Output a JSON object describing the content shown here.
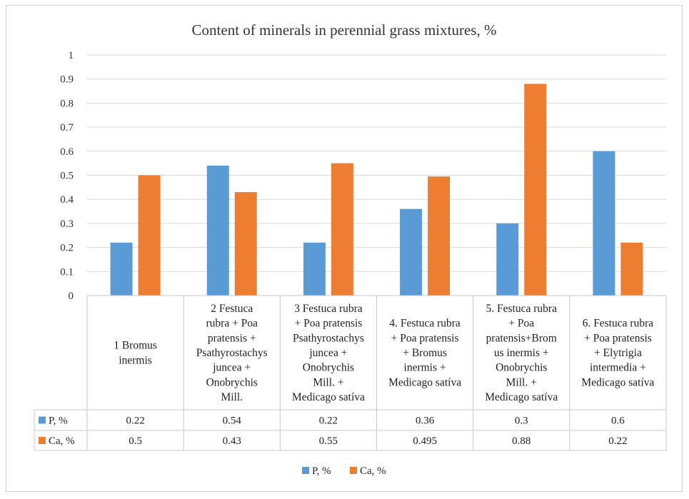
{
  "chart_data": {
    "type": "bar",
    "title": "Content of minerals in perennial grass mixtures, %",
    "ylim": [
      0,
      1
    ],
    "yticks": [
      "0",
      "0.1",
      "0.2",
      "0.3",
      "0.4",
      "0.5",
      "0.6",
      "0.7",
      "0.8",
      "0.9",
      "1"
    ],
    "grid": true,
    "legend_position": "bottom",
    "data_table": true,
    "categories": [
      [
        "1 Bromus",
        "inermis"
      ],
      [
        "2   Festuca",
        "rubra + Poa",
        "pratensis +",
        "Psathyrostachys",
        "juncea +",
        "Onobrychis",
        "Mill."
      ],
      [
        "3 Festuca rubra",
        "+ Poa pratensis",
        "Psathyrostachys",
        "juncea +",
        "Onobrychis",
        "Mill. +",
        "Medicago satíva"
      ],
      [
        "4. Festuca rubra",
        "+ Poa pratensis",
        "+ Bromus",
        "inermis +",
        "Medicago satíva"
      ],
      [
        "5. Festuca rubra",
        "+ Poa",
        "pratensis+Brom",
        "us inermis +",
        "Onobrychis",
        "Mill. +",
        "Medicago satíva"
      ],
      [
        "6. Festuca rubra",
        "+ Poa pratensis",
        "+ Elytrigia",
        "intermedia +",
        "Medicago satíva"
      ]
    ],
    "series": [
      {
        "name": "P, %",
        "color": "#5b9bd5",
        "values": [
          0.22,
          0.54,
          0.22,
          0.36,
          0.3,
          0.6
        ],
        "labels": [
          "0.22",
          "0.54",
          "0.22",
          "0.36",
          "0.3",
          "0.6"
        ]
      },
      {
        "name": "Ca, %",
        "color": "#ed7d31",
        "values": [
          0.5,
          0.43,
          0.55,
          0.495,
          0.88,
          0.22
        ],
        "labels": [
          "0.5",
          "0.43",
          "0.55",
          "0.495",
          "0.88",
          "0.22"
        ]
      }
    ]
  }
}
